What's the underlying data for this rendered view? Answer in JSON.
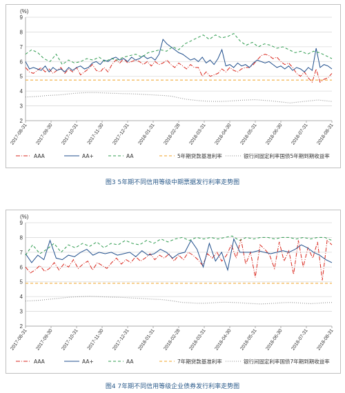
{
  "figures": [
    {
      "caption": "图3 5年期不同信用等级中期票据发行利率走势图",
      "chart_data": {
        "type": "line",
        "unit_label": "(%)",
        "ylim": [
          2,
          9
        ],
        "yticks": [
          "2",
          "3",
          "4",
          "5",
          "6",
          "7",
          "8",
          "9"
        ],
        "xticks": [
          "2017-08-31",
          "2017-09-30",
          "2017-10-31",
          "2017-11-30",
          "2017-12-31",
          "2018-01-31",
          "2018-02-28",
          "2018-03-31",
          "2018-04-30",
          "2018-05-31",
          "2018-06-30",
          "2018-07-31",
          "2018-08-31"
        ],
        "grid": "horizontal",
        "legend_position": "bottom",
        "series": [
          {
            "name": "AAA",
            "color": "#d9261c",
            "dash": "6,2,1,2",
            "values": [
              5.6,
              5.3,
              5.2,
              5.4,
              5.6,
              5.3,
              5.5,
              5.2,
              5.4,
              5.6,
              5.2,
              5.5,
              5.3,
              5.6,
              5.1,
              5.3,
              5.5,
              5.8,
              5.4,
              5.3,
              5.6,
              5.3,
              5.8,
              6.1,
              5.9,
              6.2,
              5.9,
              6.0,
              6.1,
              6.0,
              5.8,
              6.0,
              5.7,
              6.0,
              5.8,
              5.9,
              6.1,
              5.8,
              5.6,
              5.9,
              5.7,
              5.5,
              5.8,
              5.6,
              5.6,
              5.0,
              5.3,
              5.0,
              5.1,
              5.2,
              5.5,
              5.3,
              5.6,
              5.4,
              5.3,
              5.5,
              5.6,
              5.6,
              5.8,
              6.1,
              6.4,
              6.5,
              6.4,
              6.2,
              6.3,
              6.0,
              5.8,
              5.9,
              5.6,
              5.2,
              5.0,
              5.3,
              4.9,
              4.6,
              5.5,
              4.6,
              4.8,
              4.9,
              5.2
            ]
          },
          {
            "name": "AA+",
            "color": "#1f4e8c",
            "dash": "",
            "values": [
              6.0,
              5.5,
              5.6,
              5.5,
              5.4,
              5.7,
              5.3,
              5.6,
              5.4,
              5.5,
              5.3,
              5.6,
              5.4,
              5.6,
              5.7,
              5.5,
              5.6,
              5.9,
              6.0,
              5.8,
              6.1,
              6.0,
              6.2,
              6.3,
              6.1,
              6.2,
              6.0,
              6.3,
              6.1,
              6.2,
              6.4,
              6.2,
              6.3,
              6.1,
              6.5,
              7.5,
              7.2,
              7.0,
              6.8,
              6.6,
              6.5,
              6.3,
              6.1,
              6.2,
              6.0,
              6.3,
              5.9,
              6.1,
              5.8,
              6.2,
              6.8,
              5.7,
              5.8,
              5.6,
              5.9,
              5.7,
              5.8,
              5.6,
              5.9,
              6.1,
              6.0,
              5.9,
              6.0,
              5.8,
              5.6,
              5.7,
              5.5,
              5.7,
              5.4,
              5.6,
              5.5,
              5.3,
              5.6,
              5.4,
              6.9,
              5.6,
              5.8,
              5.7,
              5.5
            ]
          },
          {
            "name": "AA",
            "color": "#2e9b4e",
            "dash": "4,3",
            "values": [
              6.5,
              6.8,
              6.6,
              6.2,
              6.0,
              6.5,
              5.8,
              6.1,
              5.9,
              6.0,
              6.2,
              6.1,
              6.3,
              6.0,
              6.2,
              6.1,
              6.3,
              6.4,
              6.5,
              6.3,
              6.6,
              6.7,
              6.8,
              6.7,
              7.0,
              6.8,
              7.2,
              7.4,
              7.6,
              7.8,
              7.5,
              7.8,
              7.6,
              7.7,
              7.9,
              7.4,
              7.1,
              7.3,
              7.0,
              7.2,
              7.1,
              6.9,
              7.0,
              6.8,
              6.6,
              6.7,
              6.5,
              6.7,
              6.6,
              6.4,
              6.2
            ]
          },
          {
            "name": "5年期贷款基准利率",
            "color": "#f0a020",
            "dash": "4,3",
            "values": [
              4.75,
              4.75
            ]
          },
          {
            "name": "银行间固定利率国债5年期到期收益率",
            "color": "#8c8c8c",
            "dash": "1,2",
            "values": [
              3.6,
              3.62,
              3.65,
              3.7,
              3.72,
              3.75,
              3.8,
              3.85,
              3.88,
              3.9,
              3.9,
              3.88,
              3.86,
              3.85,
              3.83,
              3.82,
              3.8,
              3.78,
              3.75,
              3.72,
              3.7,
              3.65,
              3.55,
              3.45,
              3.4,
              3.35,
              3.32,
              3.3,
              3.3,
              3.32,
              3.35,
              3.38,
              3.4,
              3.42,
              3.38,
              3.35,
              3.3,
              3.25,
              3.2,
              3.25,
              3.3,
              3.35,
              3.4,
              3.35,
              3.3
            ]
          }
        ]
      }
    },
    {
      "caption": "图4 7年期不同信用等级企业债券发行利率走势图",
      "chart_data": {
        "type": "line",
        "unit_label": "(%)",
        "ylim": [
          2,
          9
        ],
        "yticks": [
          "2",
          "3",
          "4",
          "5",
          "6",
          "7",
          "8",
          "9"
        ],
        "xticks": [
          "2017-08-31",
          "2017-09-30",
          "2017-10-31",
          "2017-11-30",
          "2017-12-31",
          "2018-01-31",
          "2018-02-28",
          "2018-03-31",
          "2018-04-30",
          "2018-05-31",
          "2018-06-30",
          "2018-07-31",
          "2018-08-31"
        ],
        "grid": "horizontal",
        "legend_position": "bottom",
        "series": [
          {
            "name": "AAA",
            "color": "#d9261c",
            "dash": "6,2,1,2",
            "values": [
              6.0,
              5.6,
              5.8,
              6.1,
              5.7,
              5.9,
              6.3,
              5.8,
              6.2,
              6.0,
              6.5,
              5.9,
              6.2,
              6.4,
              5.8,
              6.3,
              6.1,
              5.9,
              6.3,
              6.6,
              6.2,
              6.5,
              6.3,
              6.7,
              6.4,
              6.6,
              6.9,
              6.5,
              6.8,
              6.6,
              6.9,
              6.4,
              6.8,
              6.5,
              7.0,
              6.8,
              6.5,
              6.1,
              6.9,
              6.6,
              7.0,
              6.4,
              6.8,
              7.5,
              6.6,
              7.9,
              6.2,
              7.0,
              5.3,
              7.5,
              7.2,
              6.8,
              5.9,
              7.7,
              6.4,
              7.1,
              5.5,
              7.8,
              6.0,
              7.3,
              6.6,
              7.7,
              5.1,
              7.8,
              7.5
            ]
          },
          {
            "name": "AA+",
            "color": "#1f4e8c",
            "dash": "",
            "values": [
              6.9,
              6.3,
              6.8,
              6.5,
              7.8,
              6.6,
              6.5,
              6.8,
              6.7,
              7.0,
              7.2,
              6.8,
              7.0,
              6.9,
              7.0,
              6.8,
              6.9,
              7.0,
              6.7,
              7.1,
              6.8,
              6.9,
              7.2,
              7.0,
              6.6,
              6.9,
              7.0,
              7.8,
              7.2,
              6.0,
              7.6,
              6.4,
              7.0,
              5.8,
              7.9,
              7.0,
              7.0,
              7.0,
              7.1,
              7.0,
              6.9,
              7.0,
              7.1,
              7.0,
              7.2,
              7.5,
              7.3,
              7.0,
              6.8,
              6.5,
              6.3
            ]
          },
          {
            "name": "AA",
            "color": "#2e9b4e",
            "dash": "4,3",
            "values": [
              6.8,
              7.5,
              6.9,
              7.2,
              7.6,
              7.0,
              7.5,
              7.3,
              7.6,
              7.4,
              7.7,
              7.3,
              7.6,
              7.5,
              7.8,
              7.6,
              7.5,
              7.8,
              7.6,
              7.9,
              7.7,
              7.9,
              8.0,
              7.8,
              8.0,
              7.9,
              8.0,
              7.9,
              8.0,
              8.1,
              7.8,
              8.0,
              7.9,
              8.0,
              8.0,
              7.9,
              8.0,
              8.0,
              7.9,
              8.0,
              7.9,
              8.0,
              8.0,
              7.8
            ]
          },
          {
            "name": "7年期贷款基准利率",
            "color": "#f0a020",
            "dash": "4,3",
            "values": [
              4.9,
              4.9
            ]
          },
          {
            "name": "银行间固定利率国债7年期到期收益率",
            "color": "#8c8c8c",
            "dash": "1,2",
            "values": [
              3.7,
              3.72,
              3.75,
              3.8,
              3.85,
              3.9,
              3.95,
              3.98,
              4.0,
              4.02,
              4.0,
              3.98,
              3.96,
              3.95,
              3.93,
              3.9,
              3.88,
              3.85,
              3.82,
              3.8,
              3.75,
              3.68,
              3.6,
              3.58,
              3.55,
              3.55,
              3.57,
              3.6,
              3.62,
              3.6,
              3.58,
              3.55,
              3.52,
              3.5,
              3.52,
              3.55,
              3.58,
              3.6,
              3.58,
              3.55,
              3.52,
              3.55,
              3.58,
              3.6
            ]
          }
        ]
      }
    }
  ]
}
